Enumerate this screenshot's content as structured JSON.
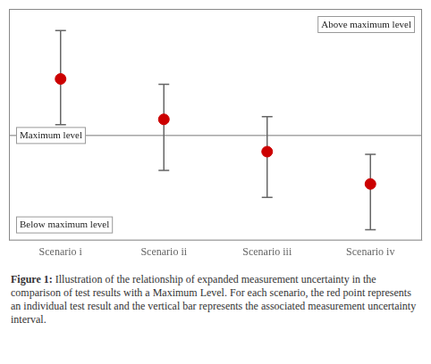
{
  "chart_data": {
    "type": "errorbar",
    "categories": [
      "Scenario i",
      "Scenario ii",
      "Scenario iii",
      "Scenario iv"
    ],
    "values": [
      3.5,
      2.75,
      2.15,
      1.55
    ],
    "error_upper": [
      0.9,
      0.65,
      0.65,
      0.55
    ],
    "error_lower": [
      0.85,
      0.95,
      0.85,
      0.85
    ],
    "color": "#cc0000",
    "marker": "circle",
    "ylim": [
      0.5,
      4.8
    ],
    "tick_labels": "x",
    "grid": false,
    "max_level": 2.45,
    "max_level_label": "Maximum level",
    "annotations": [
      "Above maximum level",
      "Below maximum level"
    ],
    "caption_label": "Figure 1:",
    "caption": " Illustration of the relationship of expanded measurement uncertainty in the comparison of test results with a Maximum Level. For each scenario, the red point represents an individual test result and the vertical bar represents the associated measurement uncertainty interval."
  }
}
